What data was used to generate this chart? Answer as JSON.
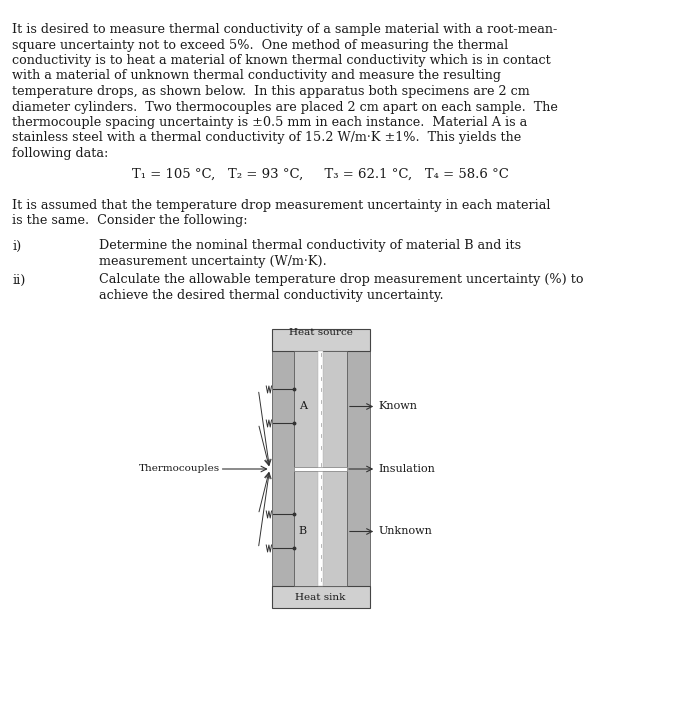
{
  "bg_color": "#ffffff",
  "text_color": "#1a1a1a",
  "paragraph1": "It is desired to measure thermal conductivity of a sample material with a root-mean-\nsquare uncertainty not to exceed 5%.  One method of measuring the thermal\nconductivity is to heat a material of known thermal conductivity which is in contact\nwith a material of unknown thermal conductivity and measure the resulting\ntemperature drops, as shown below.  In this apparatus both specimens are 2 cm\ndiameter cylinders.  Two thermocouples are placed 2 cm apart on each sample.  The\nthermocouple spacing uncertainty is ±0.5 mm in each instance.  Material A is a\nstainless steel with a thermal conductivity of 15.2 W/m·K ±1%.  This yields the\nfollowing data:",
  "temps_line": "T₁ = 105 °C,   T₂ = 93 °C,     T₃ = 62.1 °C,   T₄ = 58.6 °C",
  "paragraph2": "It is assumed that the temperature drop measurement uncertainty in each material\nis the same.  Consider the following:",
  "item_i_label": "i)",
  "item_i_text": "Determine the nominal thermal conductivity of material B and its\nmeasurement uncertainty (W/m·K).",
  "item_ii_label": "ii)",
  "item_ii_text": "Calculate the allowable temperature drop measurement uncertainty (%) to\nachieve the desired thermal conductivity uncertainty.",
  "diagram": {
    "heat_source_label": "Heat source",
    "heat_sink_label": "Heat sink",
    "thermocouples_label": "Thermocouples",
    "known_label": "Known",
    "insulation_label": "Insulation",
    "unknown_label": "Unknown",
    "label_A": "A",
    "label_B": "B"
  }
}
